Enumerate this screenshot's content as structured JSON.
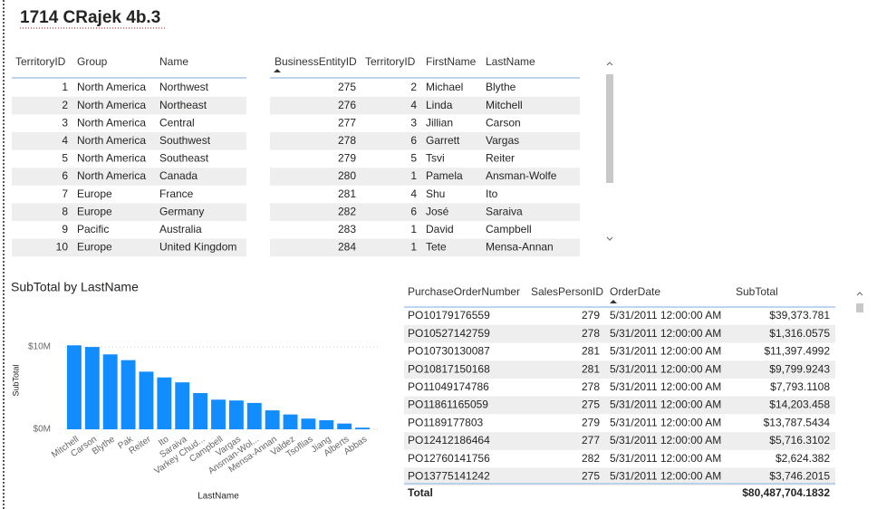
{
  "header": {
    "title": "1714 CRajek 4b.3"
  },
  "table1": {
    "columns": [
      "TerritoryID",
      "Group",
      "Name"
    ],
    "rows": [
      [
        "1",
        "North America",
        "Northwest"
      ],
      [
        "2",
        "North America",
        "Northeast"
      ],
      [
        "3",
        "North America",
        "Central"
      ],
      [
        "4",
        "North America",
        "Southwest"
      ],
      [
        "5",
        "North America",
        "Southeast"
      ],
      [
        "6",
        "North America",
        "Canada"
      ],
      [
        "7",
        "Europe",
        "France"
      ],
      [
        "8",
        "Europe",
        "Germany"
      ],
      [
        "9",
        "Pacific",
        "Australia"
      ],
      [
        "10",
        "Europe",
        "United Kingdom"
      ]
    ]
  },
  "table2": {
    "columns": [
      "BusinessEntityID",
      "TerritoryID",
      "FirstName",
      "LastName"
    ],
    "rows": [
      [
        "275",
        "2",
        "Michael",
        "Blythe"
      ],
      [
        "276",
        "4",
        "Linda",
        "Mitchell"
      ],
      [
        "277",
        "3",
        "Jillian",
        "Carson"
      ],
      [
        "278",
        "6",
        "Garrett",
        "Vargas"
      ],
      [
        "279",
        "5",
        "Tsvi",
        "Reiter"
      ],
      [
        "280",
        "1",
        "Pamela",
        "Ansman-Wolfe"
      ],
      [
        "281",
        "4",
        "Shu",
        "Ito"
      ],
      [
        "282",
        "6",
        "José",
        "Saraiva"
      ],
      [
        "283",
        "1",
        "David",
        "Campbell"
      ],
      [
        "284",
        "1",
        "Tete",
        "Mensa-Annan"
      ]
    ]
  },
  "chart_data": {
    "type": "bar",
    "title": "SubTotal by LastName",
    "x_label": "LastName",
    "y_label": "SubTotal",
    "categories": [
      "Mitchell",
      "Carson",
      "Blythe",
      "Pak",
      "Reiter",
      "Ito",
      "Saraiva",
      "Varkey Chud...",
      "Campbell",
      "Vargas",
      "Ansman-Wol...",
      "Mensa-Annan",
      "Valdez",
      "Tsoflias",
      "Jiang",
      "Alberts",
      "Abbas"
    ],
    "values": [
      10.2,
      10.0,
      9.1,
      8.4,
      7.0,
      6.3,
      5.7,
      4.4,
      3.6,
      3.5,
      3.2,
      2.3,
      1.8,
      1.3,
      1.1,
      0.7,
      0.2
    ],
    "color": "#118dff",
    "ylim": [
      0,
      11
    ],
    "yticks": [
      {
        "value": 0,
        "label": "$0M"
      },
      {
        "value": 10,
        "label": "$10M"
      }
    ],
    "grid": true
  },
  "table3": {
    "columns": [
      "PurchaseOrderNumber",
      "SalesPersonID",
      "OrderDate",
      "SubTotal"
    ],
    "rows": [
      [
        "PO10179176559",
        "279",
        "5/31/2011 12:00:00 AM",
        "$39,373.781"
      ],
      [
        "PO10527142759",
        "278",
        "5/31/2011 12:00:00 AM",
        "$1,316.0575"
      ],
      [
        "PO10730130087",
        "281",
        "5/31/2011 12:00:00 AM",
        "$11,397.4992"
      ],
      [
        "PO10817150168",
        "281",
        "5/31/2011 12:00:00 AM",
        "$9,799.9243"
      ],
      [
        "PO11049174786",
        "278",
        "5/31/2011 12:00:00 AM",
        "$7,793.1108"
      ],
      [
        "PO11861165059",
        "275",
        "5/31/2011 12:00:00 AM",
        "$14,203.458"
      ],
      [
        "PO1189177803",
        "279",
        "5/31/2011 12:00:00 AM",
        "$13,787.5434"
      ],
      [
        "PO12412186464",
        "277",
        "5/31/2011 12:00:00 AM",
        "$5,716.3102"
      ],
      [
        "PO12760141756",
        "282",
        "5/31/2011 12:00:00 AM",
        "$2,624.382"
      ],
      [
        "PO13775141242",
        "275",
        "5/31/2011 12:00:00 AM",
        "$3,746.2015"
      ]
    ],
    "total": [
      "Total",
      "$80,487,704.1832"
    ]
  }
}
